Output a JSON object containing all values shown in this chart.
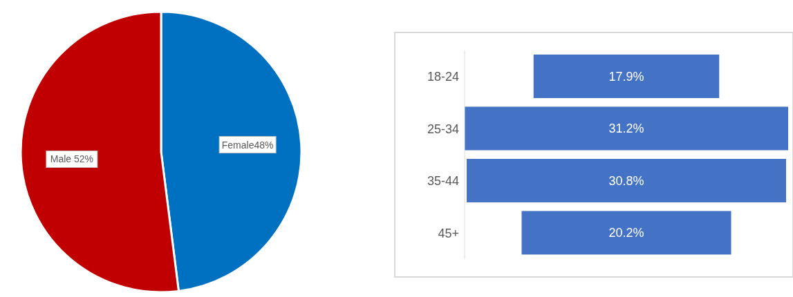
{
  "chart_data": [
    {
      "type": "pie",
      "categories": [
        "Female",
        "Male"
      ],
      "values": [
        48,
        52
      ],
      "colors": [
        "#0070c0",
        "#c00000"
      ],
      "value_labels": [
        "48%",
        " 52%"
      ]
    },
    {
      "type": "other",
      "categories": [
        "18-24",
        "25-34",
        "35-44",
        "45+"
      ],
      "values": [
        17.9,
        31.2,
        30.8,
        20.2
      ],
      "color": "#4472c4",
      "value_labels": [
        "17.9%",
        "31.2%",
        "30.8%",
        "20.2%"
      ]
    }
  ]
}
